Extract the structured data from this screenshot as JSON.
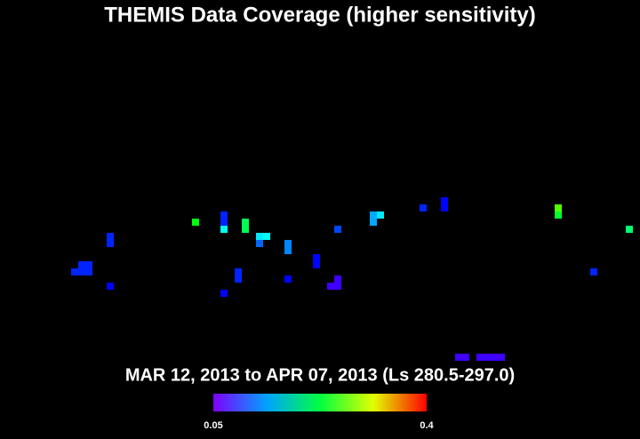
{
  "chart_data": {
    "type": "heatmap",
    "title": "THEMIS Data Coverage (higher sensitivity)",
    "subtitle": "MAR 12, 2013 to APR 07, 2013 (Ls 280.5-297.0)",
    "clim": [
      0.05,
      0.4
    ],
    "cticks": [
      0.05,
      0.4
    ],
    "cells": [
      [
        15,
        32,
        0.1
      ],
      [
        15,
        33,
        0.1
      ],
      [
        11,
        36,
        0.1
      ],
      [
        12,
        36,
        0.1
      ],
      [
        10,
        37,
        0.1
      ],
      [
        11,
        37,
        0.1
      ],
      [
        12,
        37,
        0.1
      ],
      [
        15,
        39,
        0.09
      ],
      [
        27,
        30,
        0.24
      ],
      [
        31,
        29,
        0.1
      ],
      [
        31,
        30,
        0.1
      ],
      [
        31,
        31,
        0.17
      ],
      [
        34,
        30,
        0.22
      ],
      [
        34,
        31,
        0.22
      ],
      [
        36,
        32,
        0.16
      ],
      [
        37,
        32,
        0.17
      ],
      [
        36,
        33,
        0.12
      ],
      [
        40,
        33,
        0.13
      ],
      [
        40,
        34,
        0.13
      ],
      [
        33,
        37,
        0.1
      ],
      [
        33,
        38,
        0.1
      ],
      [
        31,
        40,
        0.09
      ],
      [
        40,
        38,
        0.09
      ],
      [
        44,
        35,
        0.09
      ],
      [
        44,
        36,
        0.09
      ],
      [
        47,
        31,
        0.11
      ],
      [
        47,
        38,
        0.07
      ],
      [
        46,
        39,
        0.07
      ],
      [
        47,
        39,
        0.07
      ],
      [
        52,
        29,
        0.14
      ],
      [
        52,
        30,
        0.14
      ],
      [
        53,
        29,
        0.16
      ],
      [
        59,
        28,
        0.1
      ],
      [
        62,
        27,
        0.09
      ],
      [
        62,
        28,
        0.09
      ],
      [
        78,
        28,
        0.27
      ],
      [
        78,
        29,
        0.23
      ],
      [
        88,
        31,
        0.21
      ],
      [
        83,
        37,
        0.1
      ],
      [
        64,
        49,
        0.07
      ],
      [
        65,
        49,
        0.07
      ],
      [
        67,
        49,
        0.07
      ],
      [
        68,
        49,
        0.07
      ],
      [
        69,
        49,
        0.07
      ],
      [
        70,
        49,
        0.07
      ]
    ]
  }
}
